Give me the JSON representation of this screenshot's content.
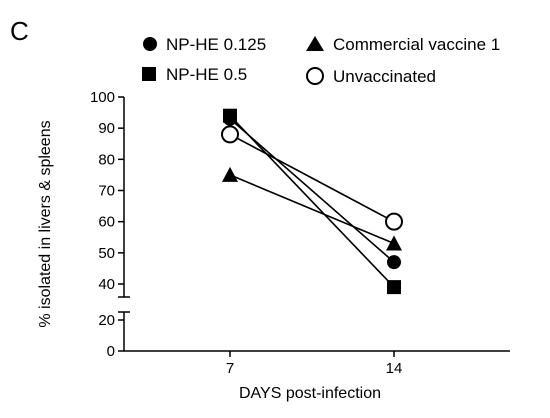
{
  "panel_label": "C",
  "chart_data": {
    "type": "line",
    "title": "",
    "xlabel": "DAYS post-infection",
    "ylabel": "% isolated in livers & spleens",
    "x": [
      7,
      14
    ],
    "x_tick_labels": [
      "7",
      "14"
    ],
    "y_axis_segments": [
      {
        "range": [
          0,
          20
        ],
        "ticks": [
          0,
          20
        ]
      },
      {
        "range": [
          35,
          100
        ],
        "ticks": [
          40,
          50,
          60,
          70,
          80,
          90,
          100
        ]
      }
    ],
    "ylim": [
      0,
      100
    ],
    "axis_break": true,
    "grid": false,
    "legend_position": "top",
    "series": [
      {
        "name": "NP-HE 0.125",
        "marker": "filled-circle",
        "values": [
          93,
          47
        ]
      },
      {
        "name": "NP-HE 0.5",
        "marker": "filled-square",
        "values": [
          94,
          39
        ]
      },
      {
        "name": "Commercial vaccine 1",
        "marker": "filled-triangle",
        "values": [
          75,
          53
        ]
      },
      {
        "name": "Unvaccinated",
        "marker": "open-circle",
        "values": [
          88,
          60
        ]
      }
    ]
  }
}
